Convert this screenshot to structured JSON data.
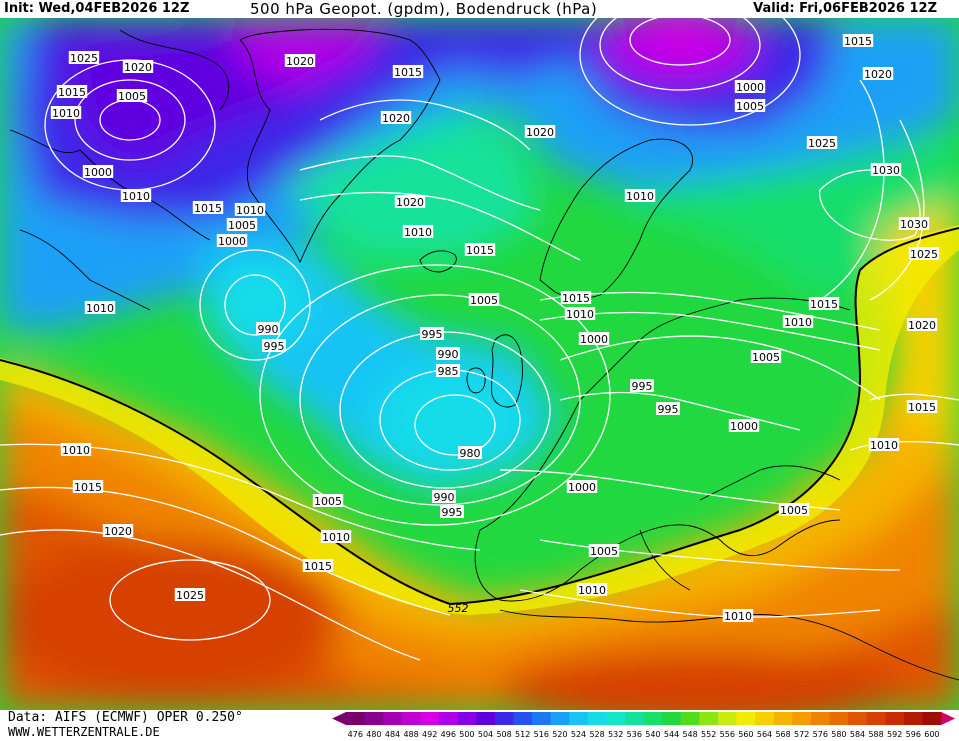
{
  "header": {
    "init": "Init: Wed,04FEB2026 12Z",
    "title": "500 hPa Geopot. (gpdm), Bodendruck (hPa)",
    "valid": "Valid: Fri,06FEB2026 12Z"
  },
  "footer": {
    "data_source": "Data: AIFS (ECMWF) OPER 0.250°",
    "url": "WWW.WETTERZENTRALE.DE"
  },
  "legend": {
    "values": [
      "476",
      "480",
      "484",
      "488",
      "492",
      "496",
      "500",
      "504",
      "508",
      "512",
      "516",
      "520",
      "524",
      "528",
      "532",
      "536",
      "540",
      "544",
      "548",
      "552",
      "556",
      "560",
      "564",
      "568",
      "572",
      "576",
      "580",
      "584",
      "588",
      "592",
      "596",
      "600"
    ],
    "colors": [
      "#7a006e",
      "#8a0090",
      "#a400b4",
      "#c000d0",
      "#d600e6",
      "#b000e8",
      "#8800e8",
      "#6000e0",
      "#3c28e8",
      "#2850f0",
      "#1c78f4",
      "#1aa0f6",
      "#18c4f4",
      "#16dcea",
      "#14e6c8",
      "#14e29c",
      "#18de6c",
      "#22d840",
      "#50de1c",
      "#8ee414",
      "#c8ec10",
      "#f4ec00",
      "#f6d000",
      "#f6b400",
      "#f49c00",
      "#f08400",
      "#e86c00",
      "#e05400",
      "#d64000",
      "#c82c00",
      "#b41c00",
      "#a00c00"
    ],
    "contour_highlight": "552"
  },
  "map_labels": [
    {
      "text": "1025",
      "name": "isobar-label-1025-nw"
    },
    {
      "text": "1020",
      "name": "isobar-label-1020-nw"
    },
    {
      "text": "1015",
      "name": "isobar-label-1015-canada"
    },
    {
      "text": "1005",
      "name": "isobar-label-1005-baffin"
    },
    {
      "text": "1010",
      "name": "isobar-label-1010-baffin"
    },
    {
      "text": "1000",
      "name": "isobar-label-1000-labrador"
    },
    {
      "text": "1010",
      "name": "isobar-label-1010-labrador"
    },
    {
      "text": "1020",
      "name": "isobar-label-1020-greenland-n"
    },
    {
      "text": "1015",
      "name": "isobar-label-1015-greenland-ne"
    },
    {
      "text": "1020",
      "name": "isobar-label-1020-greenland"
    },
    {
      "text": "1015",
      "name": "isobar-label-1015-greenland-s"
    },
    {
      "text": "1010",
      "name": "isobar-label-1010-greenland-s"
    },
    {
      "text": "1005",
      "name": "isobar-label-1005-greenland-s"
    },
    {
      "text": "1000",
      "name": "isobar-label-1000-greenland-s"
    },
    {
      "text": "1020",
      "name": "isobar-label-1020-iceland"
    },
    {
      "text": "1020",
      "name": "isobar-label-1020-norwegian-sea"
    },
    {
      "text": "1010",
      "name": "isobar-label-1010-iceland"
    },
    {
      "text": "1015",
      "name": "isobar-label-1015-iceland"
    },
    {
      "text": "1000",
      "name": "isobar-label-1000-barents"
    },
    {
      "text": "1005",
      "name": "isobar-label-1005-barents"
    },
    {
      "text": "1015",
      "name": "isobar-label-1015-ne"
    },
    {
      "text": "1020",
      "name": "isobar-label-1020-ne"
    },
    {
      "text": "1025",
      "name": "isobar-label-1025-russia"
    },
    {
      "text": "1030",
      "name": "isobar-label-1030-russia"
    },
    {
      "text": "1010",
      "name": "isobar-label-1010-scandinavia"
    },
    {
      "text": "1030",
      "name": "isobar-label-1030-east"
    },
    {
      "text": "1025",
      "name": "isobar-label-1025-east"
    },
    {
      "text": "1010",
      "name": "isobar-label-1010-atlantic-w"
    },
    {
      "text": "990",
      "name": "isobar-label-990-atlantic"
    },
    {
      "text": "995",
      "name": "isobar-label-995-atlantic"
    },
    {
      "text": "1005",
      "name": "isobar-label-1005-northsea"
    },
    {
      "text": "1015",
      "name": "isobar-label-1015-denmark"
    },
    {
      "text": "1010",
      "name": "isobar-label-1010-denmark"
    },
    {
      "text": "1015",
      "name": "isobar-label-1015-baltic"
    },
    {
      "text": "1010",
      "name": "isobar-label-1010-belarus"
    },
    {
      "text": "1020",
      "name": "isobar-label-1020-russia-e"
    },
    {
      "text": "995",
      "name": "isobar-label-995-low-outer"
    },
    {
      "text": "990",
      "name": "isobar-label-990-low"
    },
    {
      "text": "985",
      "name": "isobar-label-985-low"
    },
    {
      "text": "980",
      "name": "isobar-label-980-low-center"
    },
    {
      "text": "1000",
      "name": "isobar-label-1000-northsea"
    },
    {
      "text": "1005",
      "name": "isobar-label-1005-poland"
    },
    {
      "text": "995",
      "name": "isobar-label-995-germany"
    },
    {
      "text": "995",
      "name": "isobar-label-995-alps"
    },
    {
      "text": "1000",
      "name": "isobar-label-1000-balkans"
    },
    {
      "text": "1015",
      "name": "isobar-label-1015-ukraine"
    },
    {
      "text": "1010",
      "name": "isobar-label-1010-blacksea"
    },
    {
      "text": "1010",
      "name": "isobar-label-1010-atlantic-sw"
    },
    {
      "text": "1015",
      "name": "isobar-label-1015-atlantic-sw"
    },
    {
      "text": "1020",
      "name": "isobar-label-1020-atlantic-sw"
    },
    {
      "text": "1025",
      "name": "isobar-label-1025-azores"
    },
    {
      "text": "1005",
      "name": "isobar-label-1005-biscay"
    },
    {
      "text": "1010",
      "name": "isobar-label-1010-biscay"
    },
    {
      "text": "1015",
      "name": "isobar-label-1015-iberia-w"
    },
    {
      "text": "990",
      "name": "isobar-label-990-channel"
    },
    {
      "text": "995",
      "name": "isobar-label-995-channel"
    },
    {
      "text": "1000",
      "name": "isobar-label-1000-france"
    },
    {
      "text": "1005",
      "name": "isobar-label-1005-mediterranean"
    },
    {
      "text": "1010",
      "name": "isobar-label-1010-tyrrhenian"
    },
    {
      "text": "1010",
      "name": "isobar-label-1010-libya"
    },
    {
      "text": "1005",
      "name": "isobar-label-1005-greece"
    },
    {
      "text": "552",
      "name": "geopotential-label-552"
    }
  ]
}
